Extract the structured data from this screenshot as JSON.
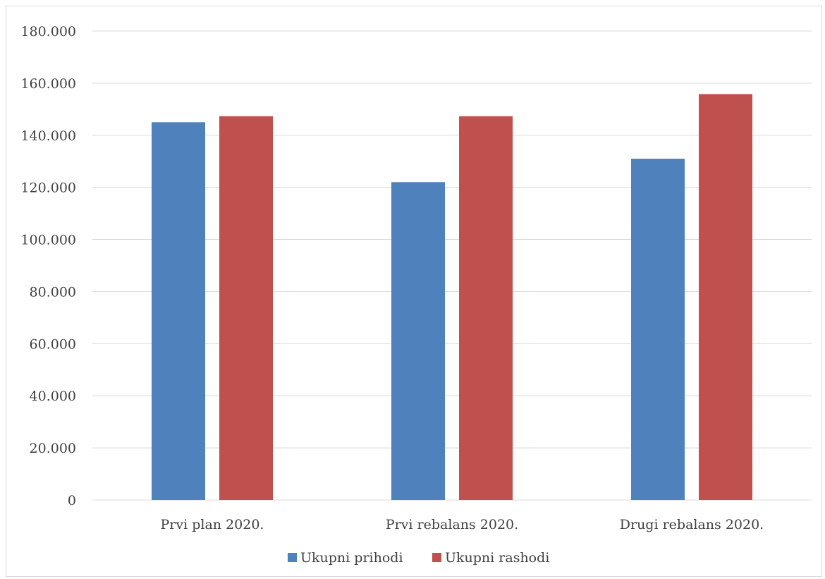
{
  "chart_data": {
    "type": "bar",
    "title": "",
    "xlabel": "",
    "ylabel": "",
    "categories": [
      "Prvi plan 2020.",
      "Prvi rebalans 2020.",
      "Drugi rebalans 2020."
    ],
    "series": [
      {
        "name": "Ukupni prihodi",
        "color": "#4f81bd",
        "values": [
          145000,
          122000,
          131000
        ]
      },
      {
        "name": "Ukupni rashodi",
        "color": "#c0504d",
        "values": [
          147300,
          147300,
          155800
        ]
      }
    ],
    "ylim": [
      0,
      180000
    ],
    "y_ticks": [
      {
        "value": 0,
        "label": "0"
      },
      {
        "value": 20000,
        "label": "20.000"
      },
      {
        "value": 40000,
        "label": "40.000"
      },
      {
        "value": 60000,
        "label": "60.000"
      },
      {
        "value": 80000,
        "label": "80.000"
      },
      {
        "value": 100000,
        "label": "100.000"
      },
      {
        "value": 120000,
        "label": "120.000"
      },
      {
        "value": 140000,
        "label": "140.000"
      },
      {
        "value": 160000,
        "label": "160.000"
      },
      {
        "value": 180000,
        "label": "180.000"
      }
    ],
    "grid": true,
    "legend": "bottom",
    "gridline_color": "#d9d9d9"
  }
}
